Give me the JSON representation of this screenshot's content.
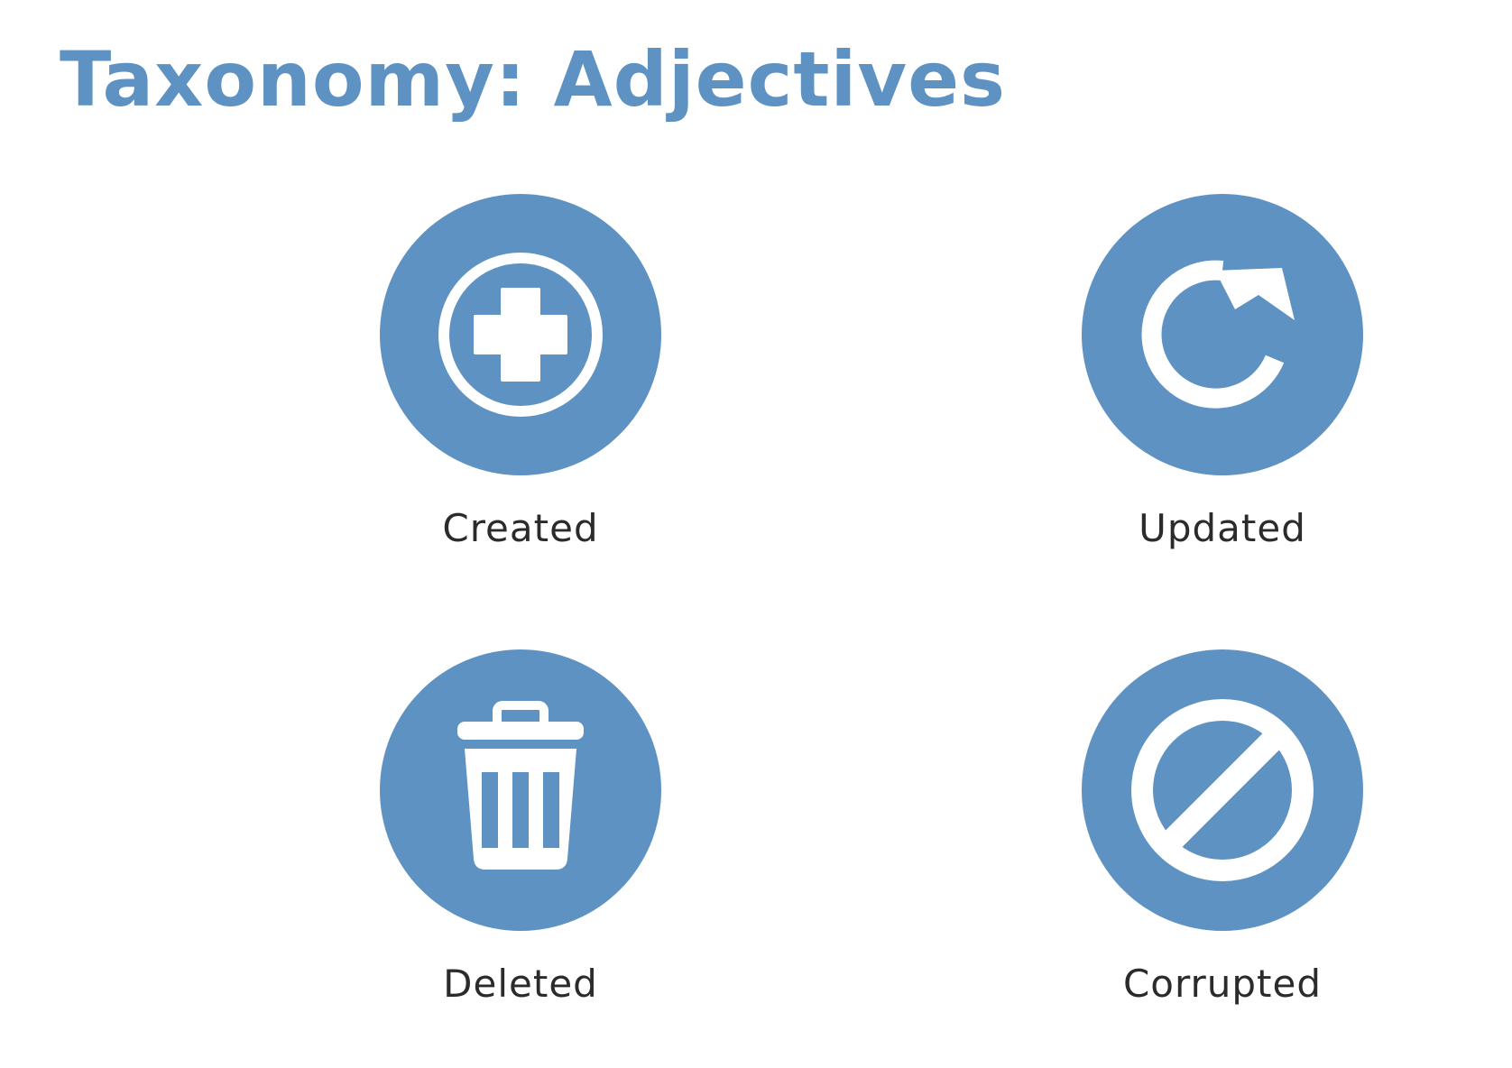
{
  "title": "Taxonomy: Adjectives",
  "items": [
    {
      "label": "Created",
      "icon": "plus-circle-icon"
    },
    {
      "label": "Updated",
      "icon": "refresh-icon"
    },
    {
      "label": "Deleted",
      "icon": "trash-icon"
    },
    {
      "label": "Corrupted",
      "icon": "prohibited-icon"
    }
  ],
  "colors": {
    "accent": "#5e92c2",
    "icon_glyph": "#ffffff",
    "label_text": "#2b2b2b",
    "background": "#ffffff"
  }
}
